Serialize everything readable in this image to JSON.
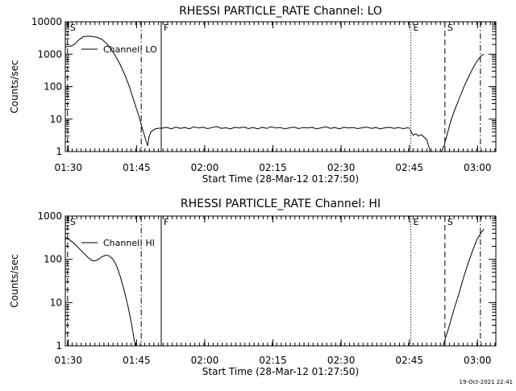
{
  "chart_data": [
    {
      "type": "line",
      "title": "RHESSI PARTICLE_RATE Channel: LO",
      "xlabel": "Start Time (28-Mar-12 01:27:50)",
      "ylabel": "Counts/sec",
      "yscale": "log",
      "ylim": [
        1,
        10000
      ],
      "xlim_minutes": [
        1.5,
        96.2
      ],
      "x_ticks": [
        {
          "minute": 2.17,
          "label": "01:30"
        },
        {
          "minute": 17.17,
          "label": "01:45"
        },
        {
          "minute": 32.17,
          "label": "02:00"
        },
        {
          "minute": 47.17,
          "label": "02:15"
        },
        {
          "minute": 62.17,
          "label": "02:30"
        },
        {
          "minute": 77.17,
          "label": "02:45"
        },
        {
          "minute": 92.17,
          "label": "03:00"
        }
      ],
      "y_ticks": [
        {
          "value": 1,
          "label": "1"
        },
        {
          "value": 10,
          "label": "10"
        },
        {
          "value": 100,
          "label": "100"
        },
        {
          "value": 1000,
          "label": "1000"
        },
        {
          "value": 10000,
          "label": "10000"
        }
      ],
      "legend": {
        "label": "Channel: LO",
        "position": "top-left"
      },
      "markers": [
        {
          "minute": 2.0,
          "label": "S",
          "style": "dashed"
        },
        {
          "minute": 18.2,
          "label": "",
          "style": "dashdot"
        },
        {
          "minute": 22.6,
          "label": "F",
          "style": "solid"
        },
        {
          "minute": 77.5,
          "label": "E",
          "style": "dotted"
        },
        {
          "minute": 85.0,
          "label": "S",
          "style": "dashed"
        },
        {
          "minute": 92.8,
          "label": "",
          "style": "dashdot"
        }
      ],
      "series": [
        {
          "name": "Channel: LO",
          "segments": [
            [
              [
                1.5,
                1700
              ],
              [
                2.5,
                1750
              ],
              [
                3.5,
                2000
              ],
              [
                4.5,
                2800
              ],
              [
                5.5,
                3500
              ],
              [
                6.5,
                3600
              ],
              [
                7.5,
                3500
              ],
              [
                8.5,
                3300
              ],
              [
                9.5,
                2900
              ],
              [
                10.5,
                2200
              ],
              [
                11.5,
                1500
              ],
              [
                12.5,
                900
              ],
              [
                13.5,
                500
              ],
              [
                14.5,
                250
              ],
              [
                15.5,
                110
              ],
              [
                16.5,
                40
              ],
              [
                17.3,
                18
              ],
              [
                17.8,
                11
              ],
              [
                18.3,
                6
              ],
              [
                18.8,
                3.5
              ],
              [
                19.3,
                2
              ],
              [
                19.6,
                1.5
              ],
              [
                19.9,
                2.8
              ],
              [
                20.3,
                4
              ],
              [
                20.8,
                4.5
              ],
              [
                21.3,
                5
              ],
              [
                21.8,
                5.2
              ],
              [
                22.6,
                5.3
              ]
            ],
            [
              [
                22.6,
                5.2
              ],
              [
                23.8,
                5.6
              ],
              [
                24.8,
                5.0
              ],
              [
                25.8,
                5.7
              ],
              [
                26.8,
                5.2
              ],
              [
                27.8,
                5.5
              ],
              [
                28.8,
                5.0
              ],
              [
                29.8,
                5.8
              ],
              [
                30.8,
                5.3
              ],
              [
                31.8,
                5.6
              ],
              [
                32.8,
                5.1
              ],
              [
                33.8,
                5.5
              ],
              [
                34.8,
                5.9
              ],
              [
                35.8,
                5.2
              ],
              [
                36.8,
                5.4
              ],
              [
                37.8,
                5.0
              ],
              [
                38.8,
                5.6
              ],
              [
                39.8,
                5.3
              ],
              [
                40.8,
                5.7
              ],
              [
                41.8,
                5.1
              ],
              [
                42.8,
                5.5
              ],
              [
                43.8,
                5.0
              ],
              [
                44.8,
                5.6
              ],
              [
                45.8,
                5.2
              ],
              [
                46.8,
                5.8
              ],
              [
                47.8,
                5.3
              ],
              [
                48.8,
                5.5
              ],
              [
                49.8,
                5.0
              ],
              [
                50.8,
                5.4
              ],
              [
                51.8,
                5.7
              ],
              [
                52.8,
                5.1
              ],
              [
                53.8,
                5.5
              ],
              [
                54.8,
                5.3
              ],
              [
                55.8,
                5.6
              ],
              [
                56.8,
                5.0
              ],
              [
                57.8,
                5.4
              ],
              [
                58.8,
                5.8
              ],
              [
                59.8,
                5.2
              ],
              [
                60.8,
                5.5
              ],
              [
                61.8,
                5.0
              ],
              [
                62.8,
                5.6
              ],
              [
                63.8,
                5.3
              ],
              [
                64.8,
                5.5
              ],
              [
                65.8,
                5.1
              ],
              [
                66.8,
                5.4
              ],
              [
                67.8,
                5.7
              ],
              [
                68.8,
                5.2
              ],
              [
                69.8,
                5.5
              ],
              [
                70.8,
                5.0
              ],
              [
                71.8,
                5.4
              ],
              [
                72.8,
                5.6
              ],
              [
                73.8,
                5.2
              ],
              [
                74.8,
                5.5
              ],
              [
                75.8,
                5.1
              ],
              [
                76.8,
                5.4
              ],
              [
                77.3,
                5.2
              ]
            ],
            [
              [
                77.3,
                4.8
              ],
              [
                78.0,
                3.2
              ],
              [
                78.6,
                3.5
              ],
              [
                79.2,
                3.0
              ],
              [
                79.8,
                3.3
              ],
              [
                80.4,
                2.8
              ],
              [
                81.0,
                2.3
              ],
              [
                81.4,
                1.5
              ],
              [
                81.8,
                1.0
              ]
            ],
            [
              [
                84.2,
                1.0
              ],
              [
                84.8,
                1.5
              ],
              [
                85.4,
                3
              ],
              [
                86.2,
                8
              ],
              [
                87.2,
                20
              ],
              [
                88.2,
                45
              ],
              [
                89.2,
                100
              ],
              [
                90.2,
                200
              ],
              [
                91.2,
                380
              ],
              [
                92.2,
                650
              ],
              [
                93.0,
                900
              ],
              [
                93.6,
                1000
              ]
            ]
          ]
        }
      ]
    },
    {
      "type": "line",
      "title": "RHESSI PARTICLE_RATE Channel: HI",
      "xlabel": "Start Time (28-Mar-12 01:27:50)",
      "ylabel": "Counts/sec",
      "yscale": "log",
      "ylim": [
        1,
        1000
      ],
      "xlim_minutes": [
        1.5,
        96.2
      ],
      "x_ticks": [
        {
          "minute": 2.17,
          "label": "01:30"
        },
        {
          "minute": 17.17,
          "label": "01:45"
        },
        {
          "minute": 32.17,
          "label": "02:00"
        },
        {
          "minute": 47.17,
          "label": "02:15"
        },
        {
          "minute": 62.17,
          "label": "02:30"
        },
        {
          "minute": 77.17,
          "label": "02:45"
        },
        {
          "minute": 92.17,
          "label": "03:00"
        }
      ],
      "y_ticks": [
        {
          "value": 1,
          "label": "1"
        },
        {
          "value": 10,
          "label": "10"
        },
        {
          "value": 100,
          "label": "100"
        },
        {
          "value": 1000,
          "label": "1000"
        }
      ],
      "legend": {
        "label": "Channel: HI",
        "position": "top-left"
      },
      "markers": [
        {
          "minute": 2.0,
          "label": "S",
          "style": "dashed"
        },
        {
          "minute": 18.2,
          "label": "",
          "style": "dashdot"
        },
        {
          "minute": 22.6,
          "label": "F",
          "style": "solid"
        },
        {
          "minute": 77.5,
          "label": "E",
          "style": "dotted"
        },
        {
          "minute": 85.0,
          "label": "S",
          "style": "dashed"
        },
        {
          "minute": 92.8,
          "label": "",
          "style": "dashdot"
        }
      ],
      "series": [
        {
          "name": "Channel: HI",
          "segments": [
            [
              [
                1.5,
                320
              ],
              [
                2.5,
                280
              ],
              [
                3.5,
                230
              ],
              [
                4.5,
                180
              ],
              [
                5.5,
                140
              ],
              [
                6.5,
                110
              ],
              [
                7.3,
                95
              ],
              [
                8.0,
                92
              ],
              [
                8.8,
                100
              ],
              [
                9.6,
                115
              ],
              [
                10.4,
                125
              ],
              [
                11.2,
                120
              ],
              [
                12.0,
                100
              ],
              [
                12.8,
                70
              ],
              [
                13.6,
                40
              ],
              [
                14.4,
                20
              ],
              [
                15.2,
                9
              ],
              [
                16.0,
                3.5
              ],
              [
                16.6,
                1.5
              ],
              [
                16.9,
                1.0
              ]
            ],
            [
              [
                84.6,
                1.0
              ],
              [
                85.2,
                1.6
              ],
              [
                86.0,
                3
              ],
              [
                87.0,
                7
              ],
              [
                88.0,
                15
              ],
              [
                89.0,
                35
              ],
              [
                90.0,
                75
              ],
              [
                91.0,
                150
              ],
              [
                92.0,
                280
              ],
              [
                93.0,
                420
              ],
              [
                93.6,
                500
              ]
            ]
          ]
        }
      ]
    }
  ],
  "timestamp": "19-Oct-2021 22:41"
}
